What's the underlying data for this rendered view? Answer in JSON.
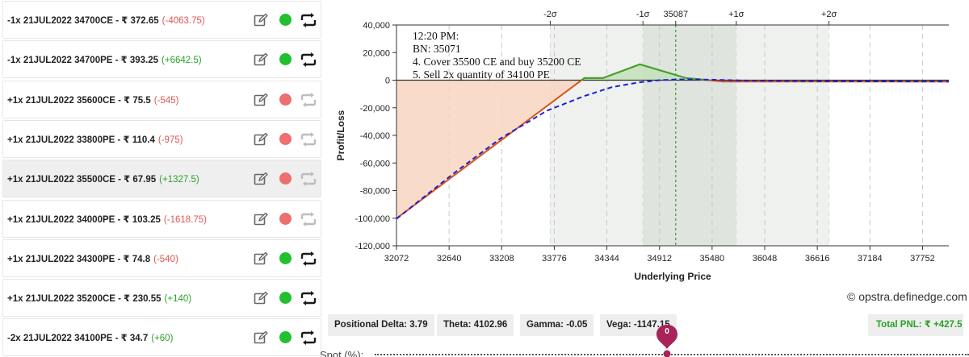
{
  "positions": [
    {
      "text": "-1x  21JUL2022  34700CE - ₹ 372.65",
      "pnl": "(-4063.75)",
      "pnl_sign": "neg",
      "status": "green",
      "repeat_active": true,
      "highlight": false
    },
    {
      "text": "-1x  21JUL2022  34700PE - ₹ 393.25",
      "pnl": "(+6642.5)",
      "pnl_sign": "pos",
      "status": "green",
      "repeat_active": true,
      "highlight": false
    },
    {
      "text": "+1x  21JUL2022  35600CE - ₹ 75.5",
      "pnl": "(-545)",
      "pnl_sign": "neg",
      "status": "red",
      "repeat_active": false,
      "highlight": false
    },
    {
      "text": "+1x  21JUL2022  33800PE - ₹ 110.4",
      "pnl": "(-975)",
      "pnl_sign": "neg",
      "status": "red",
      "repeat_active": false,
      "highlight": false
    },
    {
      "text": "+1x  21JUL2022  35500CE - ₹ 67.95",
      "pnl": "(+1327.5)",
      "pnl_sign": "pos",
      "status": "red",
      "repeat_active": false,
      "highlight": true
    },
    {
      "text": "+1x  21JUL2022  34000PE - ₹ 103.25",
      "pnl": "(-1618.75)",
      "pnl_sign": "neg",
      "status": "red",
      "repeat_active": false,
      "highlight": false
    },
    {
      "text": "+1x  21JUL2022  34300PE - ₹ 74.8",
      "pnl": "(-540)",
      "pnl_sign": "neg",
      "status": "green",
      "repeat_active": true,
      "highlight": false
    },
    {
      "text": "+1x  21JUL2022  35200CE - ₹ 230.55",
      "pnl": "(+140)",
      "pnl_sign": "pos",
      "status": "green",
      "repeat_active": true,
      "highlight": false
    },
    {
      "text": "-2x  21JUL2022  34100PE - ₹ 34.7",
      "pnl": "(+60)",
      "pnl_sign": "pos",
      "status": "green",
      "repeat_active": true,
      "highlight": false
    }
  ],
  "colors": {
    "green_dot": "#22c02e",
    "red_dot": "#ee6f6f",
    "expiry_line": "#d4571c",
    "target_line": "#1f1fcf",
    "loss_fill": "#f8d5bf",
    "profit_fill": "#c3e2b9"
  },
  "chart_data": {
    "type": "line",
    "xlabel": "Underlying Price",
    "ylabel": "Profit/Loss",
    "xlim": [
      32072,
      38036
    ],
    "ylim": [
      -120000,
      40000
    ],
    "x_ticks": [
      "32072",
      "32640",
      "33208",
      "33776",
      "34344",
      "34912",
      "35480",
      "36048",
      "36616",
      "37184",
      "37752"
    ],
    "y_ticks": [
      "40,000",
      "20,000",
      "0",
      "-20,000",
      "-40,000",
      "-60,000",
      "-80,000",
      "-100,000",
      "-120,000"
    ],
    "sigma_labels": [
      {
        "label": "-2σ",
        "value": 33732
      },
      {
        "label": "-1σ",
        "value": 34733
      },
      {
        "label": "35087",
        "value": 35087
      },
      {
        "label": "+1σ",
        "value": 35741
      },
      {
        "label": "+2σ",
        "value": 36742
      }
    ],
    "bands": [
      {
        "from": 33732,
        "to": 34733,
        "shade": "light"
      },
      {
        "from": 34733,
        "to": 35741,
        "shade": "dark"
      },
      {
        "from": 35741,
        "to": 36742,
        "shade": "light"
      }
    ],
    "spot_line": 35087,
    "annotation": [
      "12:20 PM:",
      "BN: 35071",
      "4. Cover 35500 CE and buy 35200 CE",
      "5. Sell 2x quantity of 34100 PE"
    ],
    "series": [
      {
        "role": "expiry",
        "x": [
          32072,
          34100,
          34300,
          34700,
          35200,
          35600,
          38036
        ],
        "y": [
          -100200,
          1500,
          1500,
          11500,
          1500,
          -1000,
          -1000
        ]
      },
      {
        "role": "target",
        "x": [
          32072,
          32700,
          33200,
          33700,
          34100,
          34400,
          34700,
          34912,
          35100,
          35300,
          35500,
          35800,
          36200,
          36800,
          38036
        ],
        "y": [
          -100500,
          -67000,
          -42000,
          -22000,
          -11500,
          -5000,
          -1500,
          0,
          500,
          600,
          300,
          -200,
          -500,
          -800,
          -1000
        ]
      }
    ]
  },
  "watermark": "© opstra.definedge.com",
  "greeks": {
    "delta": "Positional Delta: 3.79",
    "theta": "Theta: 4102.96",
    "gamma": "Gamma: -0.05",
    "vega": "Vega: -1147.15"
  },
  "total_pnl": "Total PNL: ₹ +427.5",
  "spot": {
    "label": "Spot (%):",
    "value": "0"
  }
}
